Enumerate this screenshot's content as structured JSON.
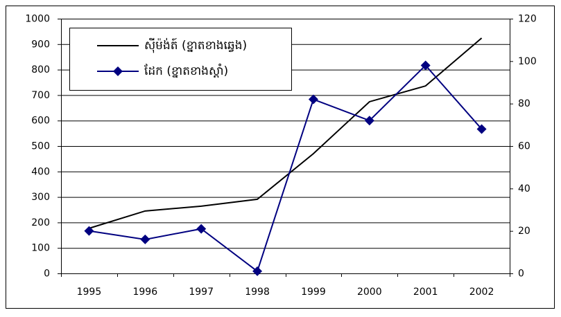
{
  "chart_data": {
    "type": "line",
    "categories": [
      "1995",
      "1996",
      "1997",
      "1998",
      "1999",
      "2000",
      "2001",
      "2002"
    ],
    "series": [
      {
        "name": "ស៊ីម៉ង់ត៍ (ខ្នាតខាងឆ្វេង)",
        "color": "#000000",
        "marker": "none",
        "values": [
          177,
          245,
          264,
          291,
          470,
          674,
          736,
          924
        ]
      },
      {
        "name": "ដែក (ខ្នាតខាងស្តាំ)",
        "color": "#000080",
        "marker": "diamond",
        "axis": "y2",
        "values": [
          20,
          16,
          21,
          1,
          82,
          72,
          98,
          68
        ]
      }
    ],
    "ylim": [
      0,
      1000
    ],
    "yticks": [
      0,
      100,
      200,
      300,
      400,
      500,
      600,
      700,
      800,
      900,
      1000
    ],
    "y2lim": [
      0,
      120
    ],
    "y2ticks": [
      0,
      20,
      40,
      60,
      80,
      100,
      120
    ],
    "grid": true,
    "legend": "top-left"
  }
}
